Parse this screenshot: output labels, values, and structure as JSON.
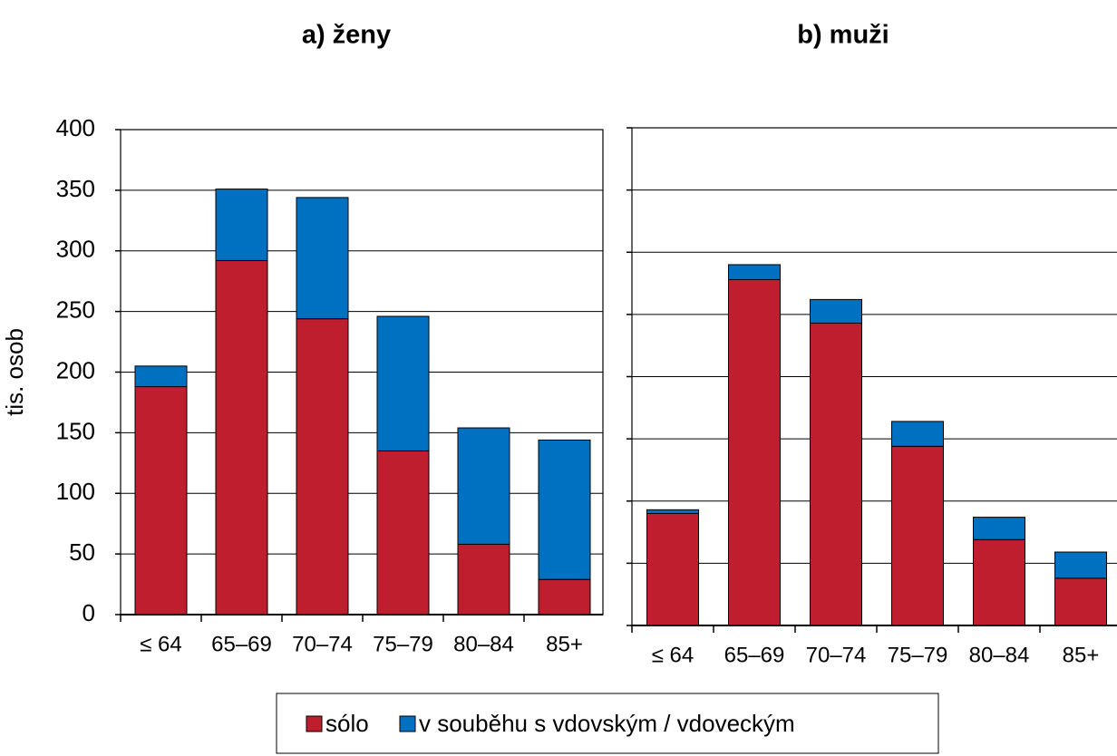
{
  "chart_data": [
    {
      "type": "bar",
      "stacked": true,
      "title": "a) ženy",
      "y_label": "tis. osob",
      "categories": [
        "≤ 64",
        "65–69",
        "70–74",
        "75–79",
        "80–84",
        "85+"
      ],
      "series": [
        {
          "name": "sólo",
          "color": "#be1e2d",
          "values": [
            188,
            292,
            244,
            135,
            58,
            29
          ]
        },
        {
          "name": "v souběhu s vdovským / vdoveckým",
          "color": "#0070c0",
          "values": [
            17,
            59,
            100,
            111,
            96,
            115
          ]
        }
      ],
      "ylim": [
        0,
        400
      ],
      "yticks": [
        0,
        50,
        100,
        150,
        200,
        250,
        300,
        350,
        400
      ],
      "grid": true,
      "tick_labels": true
    },
    {
      "type": "bar",
      "stacked": true,
      "title": "b) muži",
      "categories": [
        "≤ 64",
        "65–69",
        "70–74",
        "75–79",
        "80–84",
        "85+"
      ],
      "series": [
        {
          "color": "#be1e2d",
          "values": [
            90,
            278,
            243,
            144,
            69,
            38
          ]
        },
        {
          "color": "#0070c0",
          "values": [
            3,
            12,
            19,
            20,
            18,
            21
          ]
        }
      ],
      "ylim": [
        0,
        400
      ],
      "yticks": [
        0,
        50,
        100,
        150,
        200,
        250,
        300,
        350,
        400
      ],
      "grid": true,
      "tick_labels": false
    }
  ]
}
